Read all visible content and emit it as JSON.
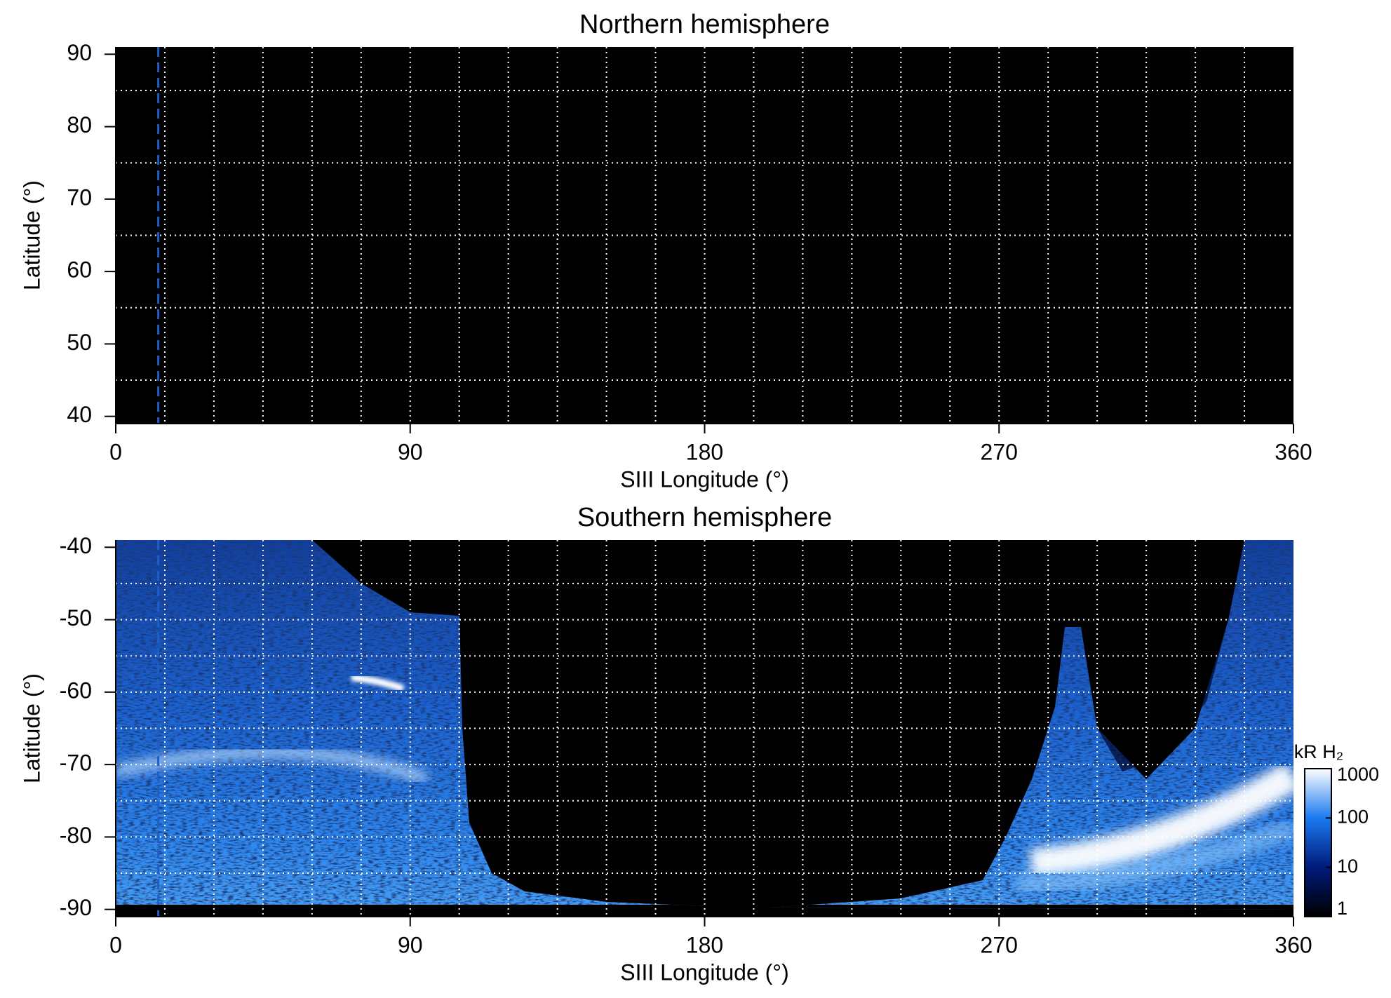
{
  "chart_data": [
    {
      "type": "heatmap",
      "title": "Northern hemisphere",
      "x_label": "SIII Longitude (°)",
      "y_label": "Latitude (°)",
      "xlim": [
        0,
        360
      ],
      "xticks": [
        0,
        90,
        180,
        270,
        360
      ],
      "ylim": [
        39,
        91
      ],
      "yticks": [
        40,
        50,
        60,
        70,
        80,
        90
      ],
      "grid_x": [
        15,
        30,
        45,
        60,
        75,
        90,
        105,
        120,
        135,
        150,
        165,
        180,
        195,
        210,
        225,
        240,
        255,
        270,
        285,
        300,
        315,
        330,
        345
      ],
      "grid_y": [
        45,
        55,
        65,
        75,
        85
      ],
      "grid_color": "#ffffff",
      "background": "#000000",
      "marker_x": 13,
      "marker_color": "#1f5fc4"
    },
    {
      "type": "heatmap",
      "title": "Southern hemisphere",
      "x_label": "SIII Longitude (°)",
      "y_label": "Latitude (°)",
      "xlim": [
        0,
        360
      ],
      "xticks": [
        0,
        90,
        180,
        270,
        360
      ],
      "ylim": [
        -91,
        -39
      ],
      "yticks": [
        -90,
        -80,
        -70,
        -60,
        -50,
        -40
      ],
      "grid_x": [
        15,
        30,
        45,
        60,
        75,
        90,
        105,
        120,
        135,
        150,
        165,
        180,
        195,
        210,
        225,
        240,
        255,
        270,
        285,
        300,
        315,
        330,
        345
      ],
      "grid_y": [
        -85,
        -80,
        -75,
        -70,
        -65,
        -60,
        -55,
        -50,
        -45
      ],
      "grid_color": "#ffffff",
      "background": "#000000",
      "marker_x": 13,
      "marker_color": "#1f5fc4",
      "colorbar": {
        "label": "kR H₂",
        "lim": [
          1,
          1000
        ],
        "ticks": [
          1,
          10,
          100,
          1000
        ],
        "log": true,
        "colors": [
          "#000000",
          "#001a7a",
          "#1a7af0",
          "#ffffff"
        ]
      }
    }
  ]
}
